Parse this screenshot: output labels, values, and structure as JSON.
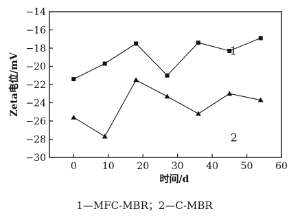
{
  "chart_data": {
    "type": "line",
    "xlabel": "时间/d",
    "ylabel": "Zeta电位/mV",
    "xlim": [
      -7,
      60
    ],
    "ylim": [
      -30,
      -14
    ],
    "xticks": [
      0,
      10,
      20,
      30,
      40,
      50,
      60
    ],
    "yticks": [
      -30,
      -28,
      -26,
      -24,
      -22,
      -20,
      -18,
      -16,
      -14
    ],
    "grid": false,
    "series": [
      {
        "name": "1",
        "marker": "square",
        "color": "#111111",
        "x": [
          0,
          9,
          18,
          27,
          36,
          45,
          54
        ],
        "y": [
          -21.4,
          -19.7,
          -17.5,
          -21.0,
          -17.4,
          -18.3,
          -16.9
        ]
      },
      {
        "name": "2",
        "marker": "triangle",
        "color": "#111111",
        "x": [
          0,
          9,
          18,
          27,
          36,
          45,
          54
        ],
        "y": [
          -25.6,
          -27.7,
          -21.5,
          -23.3,
          -25.2,
          -23.0,
          -23.7
        ]
      }
    ]
  },
  "caption": "1—MFC-MBR；2—C-MBR"
}
